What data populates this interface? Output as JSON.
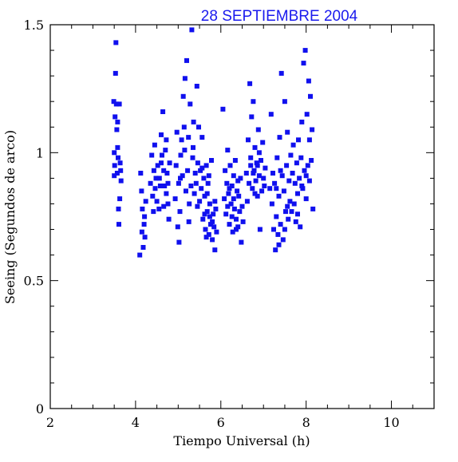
{
  "chart_data": {
    "type": "scatter",
    "title": "28 SEPTIEMBRE 2004",
    "xlabel": "Tiempo Universal (h)",
    "ylabel": "Seeing (Segundos de arco)",
    "xlim": [
      2,
      11
    ],
    "ylim": [
      0,
      1.5
    ],
    "xticks": [
      2,
      4,
      6,
      8,
      10
    ],
    "yticks": [
      0,
      0.5,
      1,
      1.5
    ],
    "xtick_labels": [
      "2",
      "4",
      "6",
      "8",
      "10"
    ],
    "ytick_labels": [
      "0",
      "0.5",
      "1",
      "1.5"
    ],
    "grid": false,
    "colors": {
      "points": "#1010ee",
      "title": "#1a1aee",
      "axes": "#000000"
    },
    "series": [
      {
        "points": [
          [
            3.49,
            1.2
          ],
          [
            3.5,
            1.0
          ],
          [
            3.51,
            0.95
          ],
          [
            3.52,
            1.14
          ],
          [
            3.53,
            1.31
          ],
          [
            3.54,
            1.43
          ],
          [
            3.55,
            1.19
          ],
          [
            3.56,
            1.09
          ],
          [
            3.57,
            0.92
          ],
          [
            3.58,
            1.12
          ],
          [
            3.59,
            0.98
          ],
          [
            3.6,
            0.78
          ],
          [
            3.61,
            0.72
          ],
          [
            3.62,
            1.19
          ],
          [
            3.63,
            0.82
          ],
          [
            3.64,
            0.96
          ],
          [
            3.65,
            0.93
          ],
          [
            3.66,
            0.89
          ],
          [
            3.5,
            0.91
          ],
          [
            3.58,
            1.02
          ],
          [
            4.1,
            0.6
          ],
          [
            4.12,
            0.92
          ],
          [
            4.14,
            0.85
          ],
          [
            4.16,
            0.78
          ],
          [
            4.18,
            0.63
          ],
          [
            4.2,
            0.72
          ],
          [
            4.22,
            0.67
          ],
          [
            4.24,
            0.81
          ],
          [
            4.15,
            0.69
          ],
          [
            4.21,
            0.75
          ],
          [
            4.35,
            0.88
          ],
          [
            4.38,
            0.99
          ],
          [
            4.4,
            0.83
          ],
          [
            4.43,
            0.93
          ],
          [
            4.45,
            1.03
          ],
          [
            4.48,
            0.9
          ],
          [
            4.5,
            0.81
          ],
          [
            4.52,
            0.95
          ],
          [
            4.55,
            0.78
          ],
          [
            4.58,
            0.87
          ],
          [
            4.6,
            1.07
          ],
          [
            4.62,
            0.99
          ],
          [
            4.64,
            1.16
          ],
          [
            4.66,
            0.93
          ],
          [
            4.68,
            0.87
          ],
          [
            4.7,
            1.01
          ],
          [
            4.72,
            0.84
          ],
          [
            4.74,
            0.92
          ],
          [
            4.76,
            0.8
          ],
          [
            4.78,
            0.74
          ],
          [
            4.8,
            0.96
          ],
          [
            4.46,
            0.86
          ],
          [
            4.56,
            0.9
          ],
          [
            4.66,
            0.79
          ],
          [
            4.72,
            1.05
          ],
          [
            4.42,
            0.77
          ],
          [
            4.6,
            0.96
          ],
          [
            4.76,
            0.88
          ],
          [
            4.93,
            0.82
          ],
          [
            4.95,
            0.95
          ],
          [
            4.97,
            1.08
          ],
          [
            4.99,
            0.71
          ],
          [
            5.01,
            0.88
          ],
          [
            5.02,
            0.65
          ],
          [
            5.04,
            0.77
          ],
          [
            5.06,
            0.99
          ],
          [
            5.08,
            1.05
          ],
          [
            5.1,
            0.91
          ],
          [
            5.12,
            1.22
          ],
          [
            5.14,
            1.1
          ],
          [
            5.16,
            1.29
          ],
          [
            5.18,
            0.85
          ],
          [
            5.2,
            1.36
          ],
          [
            5.22,
            0.93
          ],
          [
            5.24,
            1.06
          ],
          [
            5.26,
            0.8
          ],
          [
            5.28,
            1.19
          ],
          [
            5.3,
            0.87
          ],
          [
            5.32,
            1.48
          ],
          [
            5.34,
            0.98
          ],
          [
            5.36,
            1.12
          ],
          [
            5.38,
            0.84
          ],
          [
            5.4,
            0.92
          ],
          [
            5.42,
            0.88
          ],
          [
            5.44,
            1.26
          ],
          [
            5.46,
            0.96
          ],
          [
            5.48,
            1.1
          ],
          [
            5.5,
            0.81
          ],
          [
            5.15,
            1.01
          ],
          [
            5.25,
            0.73
          ],
          [
            5.35,
            1.02
          ],
          [
            5.05,
            0.9
          ],
          [
            5.45,
            0.79
          ],
          [
            5.52,
            0.93
          ],
          [
            5.54,
            0.86
          ],
          [
            5.56,
            1.06
          ],
          [
            5.58,
            0.74
          ],
          [
            5.6,
            0.9
          ],
          [
            5.62,
            0.83
          ],
          [
            5.64,
            0.7
          ],
          [
            5.66,
            0.95
          ],
          [
            5.68,
            0.77
          ],
          [
            5.7,
            0.88
          ],
          [
            5.72,
            0.68
          ],
          [
            5.74,
            0.8
          ],
          [
            5.76,
            0.72
          ],
          [
            5.78,
            0.97
          ],
          [
            5.8,
            0.66
          ],
          [
            5.82,
            0.76
          ],
          [
            5.84,
            0.71
          ],
          [
            5.86,
            0.62
          ],
          [
            5.88,
            0.78
          ],
          [
            5.9,
            0.69
          ],
          [
            5.56,
            0.94
          ],
          [
            5.62,
            0.76
          ],
          [
            5.68,
            0.84
          ],
          [
            5.74,
            0.75
          ],
          [
            5.8,
            0.73
          ],
          [
            5.66,
            0.67
          ],
          [
            5.86,
            0.81
          ],
          [
            5.72,
            0.91
          ],
          [
            6.05,
            1.17
          ],
          [
            6.08,
            0.82
          ],
          [
            6.1,
            0.93
          ],
          [
            6.12,
            0.76
          ],
          [
            6.14,
            0.88
          ],
          [
            6.16,
            1.01
          ],
          [
            6.18,
            0.84
          ],
          [
            6.2,
            0.72
          ],
          [
            6.22,
            0.95
          ],
          [
            6.24,
            0.8
          ],
          [
            6.26,
            0.87
          ],
          [
            6.28,
            0.69
          ],
          [
            6.3,
            0.91
          ],
          [
            6.32,
            0.78
          ],
          [
            6.34,
            0.97
          ],
          [
            6.36,
            0.74
          ],
          [
            6.38,
            0.85
          ],
          [
            6.4,
            0.71
          ],
          [
            6.42,
            0.83
          ],
          [
            6.44,
            0.77
          ],
          [
            6.46,
            0.9
          ],
          [
            6.48,
            0.65
          ],
          [
            6.5,
            0.79
          ],
          [
            6.52,
            0.73
          ],
          [
            6.2,
            0.86
          ],
          [
            6.3,
            0.82
          ],
          [
            6.4,
            0.89
          ],
          [
            6.16,
            0.79
          ],
          [
            6.26,
            0.75
          ],
          [
            6.36,
            0.7
          ],
          [
            6.6,
            0.92
          ],
          [
            6.62,
            0.81
          ],
          [
            6.64,
            1.05
          ],
          [
            6.66,
            0.88
          ],
          [
            6.68,
            1.27
          ],
          [
            6.7,
            0.95
          ],
          [
            6.72,
            1.14
          ],
          [
            6.74,
            0.86
          ],
          [
            6.76,
            1.2
          ],
          [
            6.78,
            0.93
          ],
          [
            6.8,
            1.02
          ],
          [
            6.82,
            0.89
          ],
          [
            6.84,
            0.96
          ],
          [
            6.86,
            0.83
          ],
          [
            6.88,
            1.09
          ],
          [
            6.9,
            0.91
          ],
          [
            6.92,
            0.7
          ],
          [
            6.94,
            0.97
          ],
          [
            6.96,
            0.85
          ],
          [
            6.98,
            1.04
          ],
          [
            7.0,
            0.9
          ],
          [
            7.02,
            0.87
          ],
          [
            7.04,
            0.94
          ],
          [
            6.7,
            0.98
          ],
          [
            6.8,
            0.84
          ],
          [
            6.9,
            1.0
          ],
          [
            6.76,
            0.92
          ],
          [
            6.86,
            0.95
          ],
          [
            7.15,
            0.86
          ],
          [
            7.18,
            1.15
          ],
          [
            7.2,
            0.8
          ],
          [
            7.22,
            0.92
          ],
          [
            7.24,
            0.7
          ],
          [
            7.26,
            0.88
          ],
          [
            7.28,
            0.62
          ],
          [
            7.3,
            0.75
          ],
          [
            7.32,
            0.98
          ],
          [
            7.34,
            0.68
          ],
          [
            7.36,
            0.83
          ],
          [
            7.38,
            1.06
          ],
          [
            7.4,
            0.72
          ],
          [
            7.42,
            1.31
          ],
          [
            7.44,
            0.91
          ],
          [
            7.46,
            0.66
          ],
          [
            7.48,
            0.85
          ],
          [
            7.5,
            1.2
          ],
          [
            7.52,
            0.77
          ],
          [
            7.54,
            0.95
          ],
          [
            7.56,
            1.08
          ],
          [
            7.58,
            0.74
          ],
          [
            7.6,
            0.89
          ],
          [
            7.62,
            0.81
          ],
          [
            7.64,
            0.99
          ],
          [
            7.3,
            0.86
          ],
          [
            7.4,
            0.93
          ],
          [
            7.5,
            0.7
          ],
          [
            7.36,
            0.64
          ],
          [
            7.56,
            0.79
          ],
          [
            7.66,
            0.77
          ],
          [
            7.68,
            0.92
          ],
          [
            7.7,
            1.03
          ],
          [
            7.72,
            0.8
          ],
          [
            7.74,
            0.88
          ],
          [
            7.76,
            0.73
          ],
          [
            7.78,
            0.96
          ],
          [
            7.8,
            0.84
          ],
          [
            7.82,
            1.05
          ],
          [
            7.84,
            0.9
          ],
          [
            7.86,
            0.71
          ],
          [
            7.88,
            0.98
          ],
          [
            7.9,
            1.12
          ],
          [
            7.92,
            0.86
          ],
          [
            7.94,
            1.35
          ],
          [
            7.96,
            0.93
          ],
          [
            7.98,
            1.4
          ],
          [
            8.0,
            0.82
          ],
          [
            8.02,
            1.15
          ],
          [
            8.04,
            0.95
          ],
          [
            8.06,
            1.28
          ],
          [
            8.08,
            0.89
          ],
          [
            8.1,
            1.22
          ],
          [
            8.12,
            0.97
          ],
          [
            8.14,
            1.09
          ],
          [
            8.16,
            0.78
          ],
          [
            7.9,
            0.87
          ],
          [
            8.0,
            0.91
          ],
          [
            8.08,
            1.05
          ],
          [
            7.8,
            0.76
          ]
        ]
      }
    ]
  }
}
